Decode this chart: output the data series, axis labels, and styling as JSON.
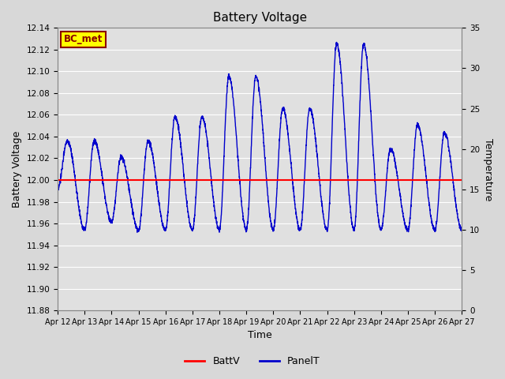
{
  "title": "Battery Voltage",
  "xlabel": "Time",
  "ylabel_left": "Battery Voltage",
  "ylabel_right": "Temperature",
  "ylim_left": [
    11.88,
    12.14
  ],
  "ylim_right": [
    0,
    35
  ],
  "yticks_left": [
    11.88,
    11.9,
    11.92,
    11.94,
    11.96,
    11.98,
    12.0,
    12.02,
    12.04,
    12.06,
    12.08,
    12.1,
    12.12,
    12.14
  ],
  "yticks_right": [
    0,
    5,
    10,
    15,
    20,
    25,
    30,
    35
  ],
  "x_tick_labels": [
    "Apr 12",
    "Apr 13",
    "Apr 14",
    "Apr 15",
    "Apr 16",
    "Apr 17",
    "Apr 18",
    "Apr 19",
    "Apr 20",
    "Apr 21",
    "Apr 22",
    "Apr 23",
    "Apr 24",
    "Apr 25",
    "Apr 26",
    "Apr 27"
  ],
  "battv_value": 12.0,
  "fig_bg_color": "#d8d8d8",
  "plot_bg_color": "#e0e0e0",
  "grid_color": "#ffffff",
  "batt_color": "#ff0000",
  "panel_color": "#0000cc",
  "annotation_text": "BC_met",
  "annotation_bg": "#ffff00",
  "annotation_border": "#8b0000",
  "annotation_text_color": "#8b0000"
}
